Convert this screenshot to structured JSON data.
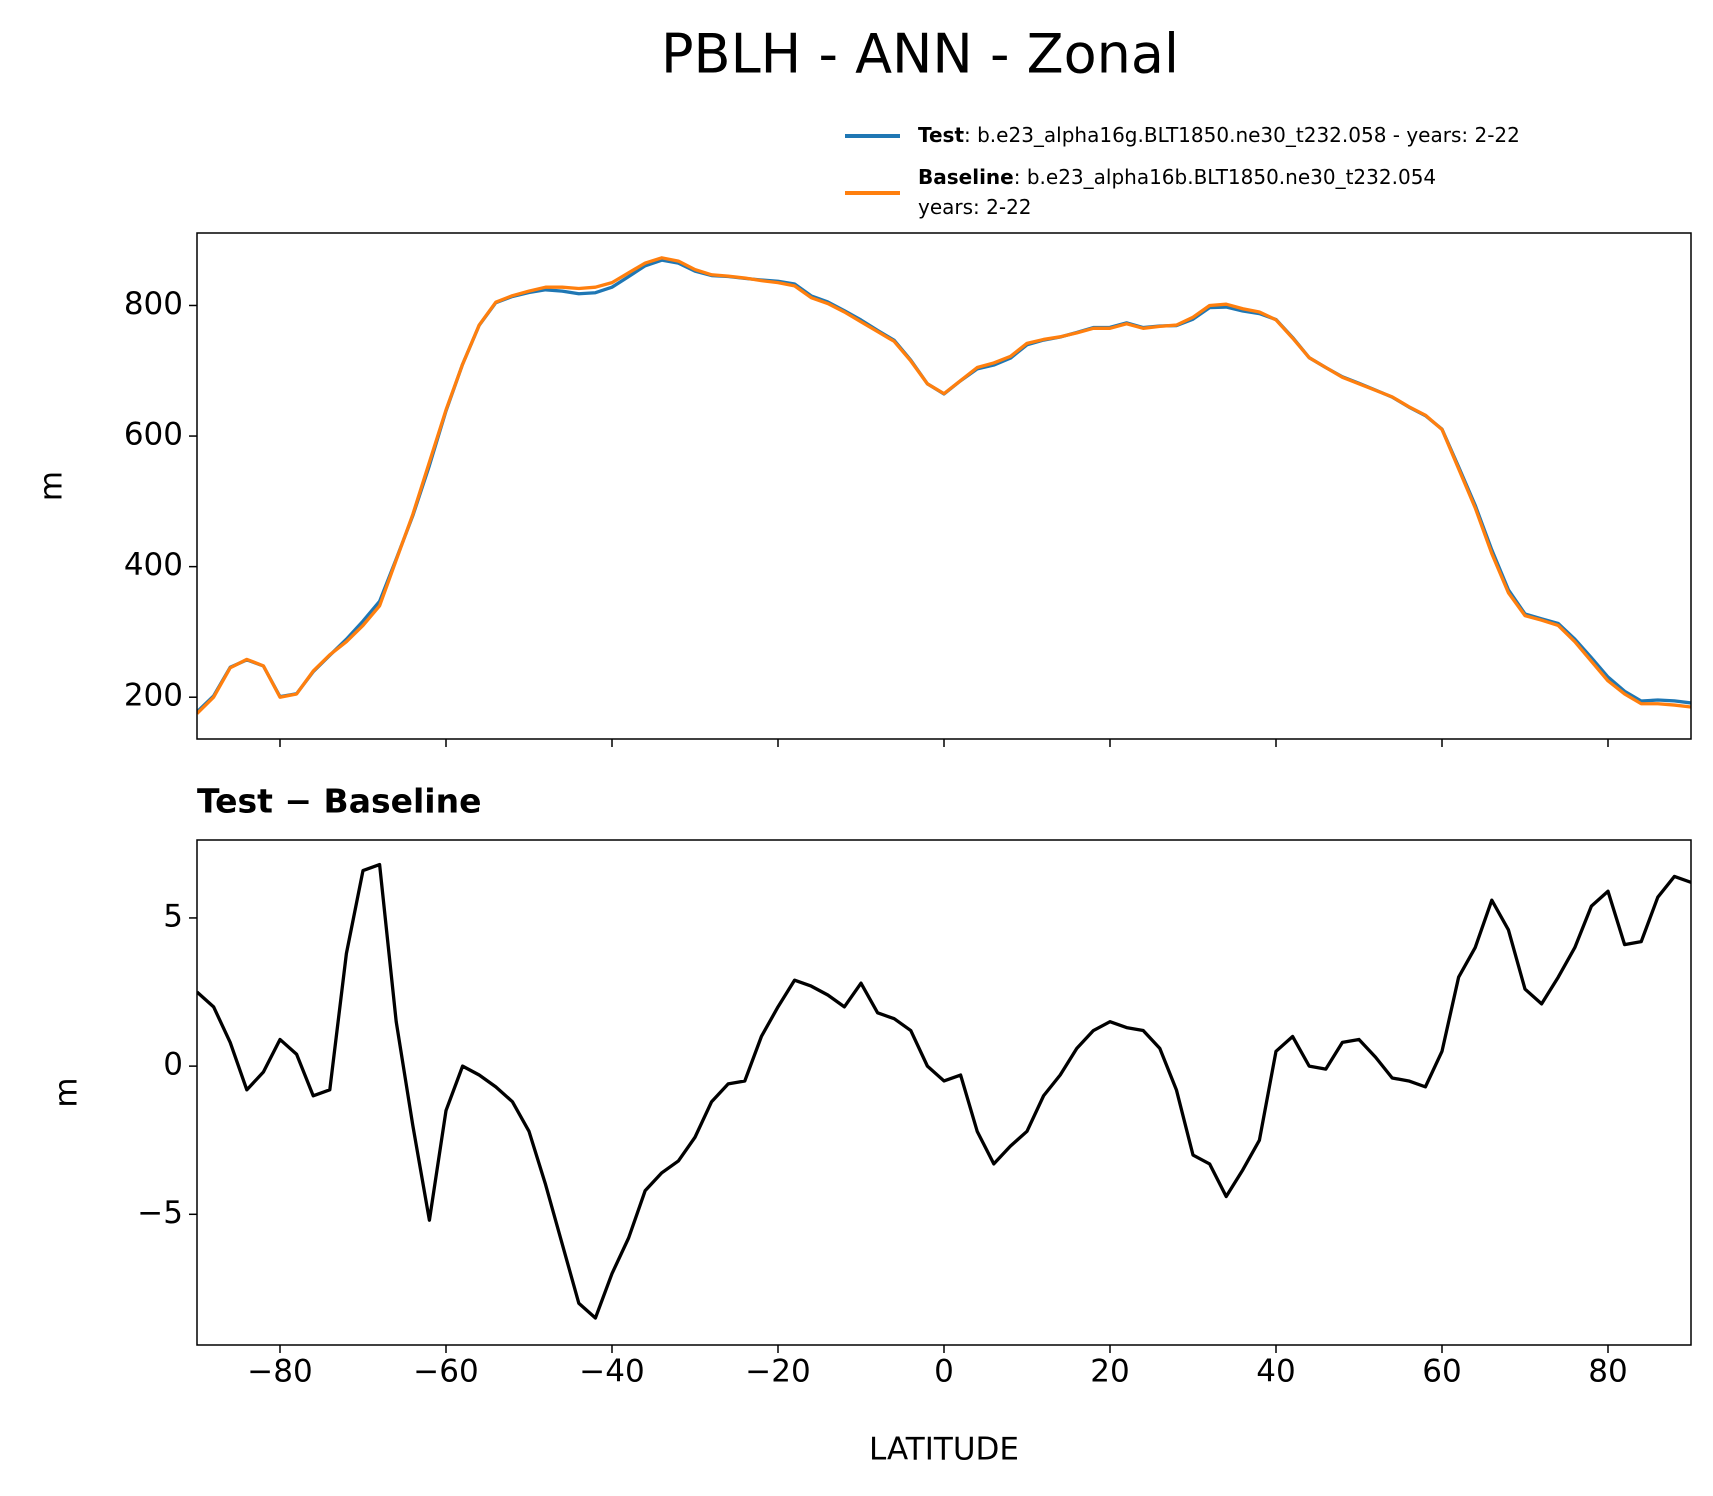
{
  "chart_data": [
    {
      "type": "line",
      "title": "PBLH - ANN - Zonal",
      "ylabel": "m",
      "xlim": [
        -90,
        90
      ],
      "xticks": [
        -80,
        -60,
        -40,
        -20,
        0,
        20,
        40,
        60,
        80
      ],
      "xticklabels": false,
      "ylim": [
        136,
        911
      ],
      "yticks": [
        200,
        400,
        600,
        800
      ],
      "legend": "above right",
      "x": [
        -90,
        -88,
        -86,
        -84,
        -82,
        -80,
        -78,
        -76,
        -74,
        -72,
        -70,
        -68,
        -66,
        -64,
        -62,
        -60,
        -58,
        -56,
        -54,
        -52,
        -50,
        -48,
        -46,
        -44,
        -42,
        -40,
        -38,
        -36,
        -34,
        -32,
        -30,
        -28,
        -26,
        -24,
        -22,
        -20,
        -18,
        -16,
        -14,
        -12,
        -10,
        -8,
        -6,
        -4,
        -2,
        0,
        2,
        4,
        6,
        8,
        10,
        12,
        14,
        16,
        18,
        20,
        22,
        24,
        26,
        28,
        30,
        32,
        34,
        36,
        38,
        40,
        42,
        44,
        46,
        48,
        50,
        52,
        54,
        56,
        58,
        60,
        62,
        64,
        66,
        68,
        70,
        72,
        74,
        76,
        78,
        80,
        82,
        84,
        86,
        88,
        90
      ],
      "series": [
        {
          "name": "Test",
          "label_lines": [
            ": b.e23_alpha16g.BLT1850.ne30_t232.058 - years: 2-22"
          ],
          "color": "#1f77b4",
          "values": [
            177.5,
            202,
            245.8,
            257.2,
            247.8,
            200.9,
            205.4,
            239,
            264.2,
            288.8,
            316.6,
            346.8,
            411.5,
            478,
            554.8,
            638.5,
            710,
            769.7,
            804.3,
            813.8,
            819.8,
            824,
            822,
            818,
            819.5,
            828,
            844.2,
            860.8,
            869.4,
            864.8,
            852.6,
            845.8,
            844.4,
            841.5,
            839,
            837,
            832.9,
            814.7,
            805.4,
            792,
            777.8,
            761.8,
            746.6,
            716.2,
            680,
            664.5,
            684.7,
            702.8,
            708.7,
            719.3,
            739.8,
            747,
            751.7,
            758.6,
            766.2,
            766.5,
            773.3,
            766.2,
            768.6,
            769.2,
            779,
            796.7,
            797.6,
            791.5,
            787.5,
            778.5,
            751,
            720,
            704.9,
            690.8,
            680.9,
            670.3,
            659.6,
            644.5,
            631.3,
            610.5,
            553,
            494,
            425.6,
            364.6,
            327.6,
            320.1,
            313,
            289,
            260.4,
            230.9,
            209.1,
            194.2,
            195.7,
            194.4,
            191.2
          ]
        },
        {
          "name": "Baseline",
          "label_lines": [
            ": b.e23_alpha16b.BLT1850.ne30_t232.054",
            "years: 2-22"
          ],
          "color": "#ff7f0e",
          "values": [
            175,
            200,
            245,
            258,
            248,
            200,
            205,
            240,
            265,
            285,
            310,
            340,
            410,
            480,
            560,
            640,
            710,
            770,
            805,
            815,
            822,
            828,
            828,
            826,
            828,
            835,
            850,
            865,
            873,
            868,
            855,
            847,
            845,
            842,
            838,
            835,
            830,
            812,
            803,
            790,
            775,
            760,
            745,
            715,
            680,
            665,
            685,
            705,
            712,
            722,
            742,
            748,
            752,
            758,
            765,
            765,
            772,
            765,
            768,
            770,
            782,
            800,
            802,
            795,
            790,
            778,
            750,
            720,
            705,
            690,
            680,
            670,
            660,
            645,
            632,
            610,
            550,
            490,
            420,
            360,
            325,
            318,
            310,
            285,
            255,
            225,
            205,
            190,
            190,
            188,
            185
          ]
        }
      ]
    },
    {
      "type": "line",
      "title": "Test − Baseline",
      "ylabel": "m",
      "xlabel": "LATITUDE",
      "xlim": [
        -90,
        90
      ],
      "xticks": [
        {
          "value": -80,
          "label": "−80"
        },
        {
          "value": -60,
          "label": "−60"
        },
        {
          "value": -40,
          "label": "−40"
        },
        {
          "value": -20,
          "label": "−20"
        },
        0,
        20,
        40,
        60,
        80
      ],
      "ylim": [
        -9.41,
        7.63
      ],
      "yticks": [
        {
          "value": -5,
          "label": "−5"
        },
        0,
        5
      ],
      "x": [
        -90,
        -88,
        -86,
        -84,
        -82,
        -80,
        -78,
        -76,
        -74,
        -72,
        -70,
        -68,
        -66,
        -64,
        -62,
        -60,
        -58,
        -56,
        -54,
        -52,
        -50,
        -48,
        -46,
        -44,
        -42,
        -40,
        -38,
        -36,
        -34,
        -32,
        -30,
        -28,
        -26,
        -24,
        -22,
        -20,
        -18,
        -16,
        -14,
        -12,
        -10,
        -8,
        -6,
        -4,
        -2,
        0,
        2,
        4,
        6,
        8,
        10,
        12,
        14,
        16,
        18,
        20,
        22,
        24,
        26,
        28,
        30,
        32,
        34,
        36,
        38,
        40,
        42,
        44,
        46,
        48,
        50,
        52,
        54,
        56,
        58,
        60,
        62,
        64,
        66,
        68,
        70,
        72,
        74,
        76,
        78,
        80,
        82,
        84,
        86,
        88,
        90
      ],
      "color": "#000000",
      "values": [
        2.5,
        2.0,
        0.8,
        -0.8,
        -0.2,
        0.9,
        0.4,
        -1.0,
        -0.8,
        3.8,
        6.6,
        6.8,
        1.5,
        -2,
        -5.2,
        -1.5,
        0.0,
        -0.3,
        -0.7,
        -1.2,
        -2.2,
        -4,
        -6,
        -8,
        -8.5,
        -7,
        -5.8,
        -4.2,
        -3.6,
        -3.2,
        -2.4,
        -1.2,
        -0.6,
        -0.5,
        1.0,
        2.0,
        2.9,
        2.7,
        2.4,
        2.0,
        2.8,
        1.8,
        1.6,
        1.2,
        0.0,
        -0.5,
        -0.3,
        -2.2,
        -3.3,
        -2.7,
        -2.2,
        -1.0,
        -0.3,
        0.6,
        1.2,
        1.5,
        1.3,
        1.2,
        0.6,
        -0.8,
        -3.0,
        -3.3,
        -4.4,
        -3.5,
        -2.5,
        0.5,
        1.0,
        0.0,
        -0.1,
        0.8,
        0.9,
        0.3,
        -0.4,
        -0.5,
        -0.7,
        0.5,
        3.0,
        4.0,
        5.6,
        4.6,
        2.6,
        2.1,
        3.0,
        4.0,
        5.4,
        5.9,
        4.1,
        4.2,
        5.7,
        6.4,
        6.2
      ]
    }
  ]
}
